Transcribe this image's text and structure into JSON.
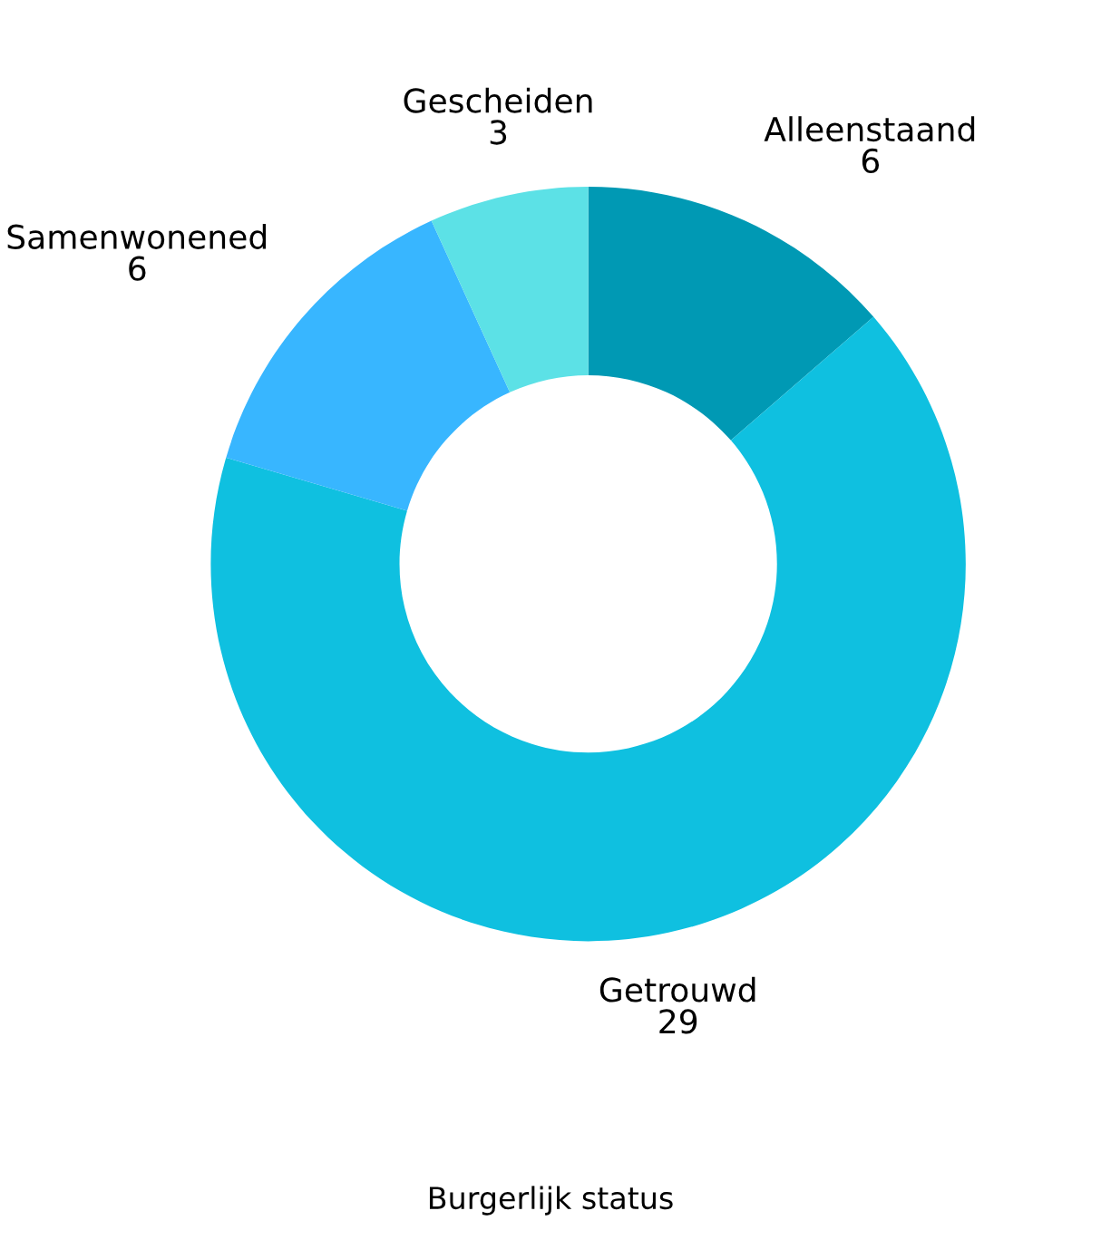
{
  "chart_data": {
    "type": "donut",
    "xlabel": "Burgerlijk status",
    "categories": [
      "Alleenstaand",
      "Getrouwd",
      "Samenwonened",
      "Gescheiden"
    ],
    "values": [
      6,
      29,
      6,
      3
    ],
    "colors": [
      "#0099b4",
      "#0fc0e0",
      "#38b6ff",
      "#5ce1e6"
    ],
    "data_labels": true,
    "legend": false
  }
}
